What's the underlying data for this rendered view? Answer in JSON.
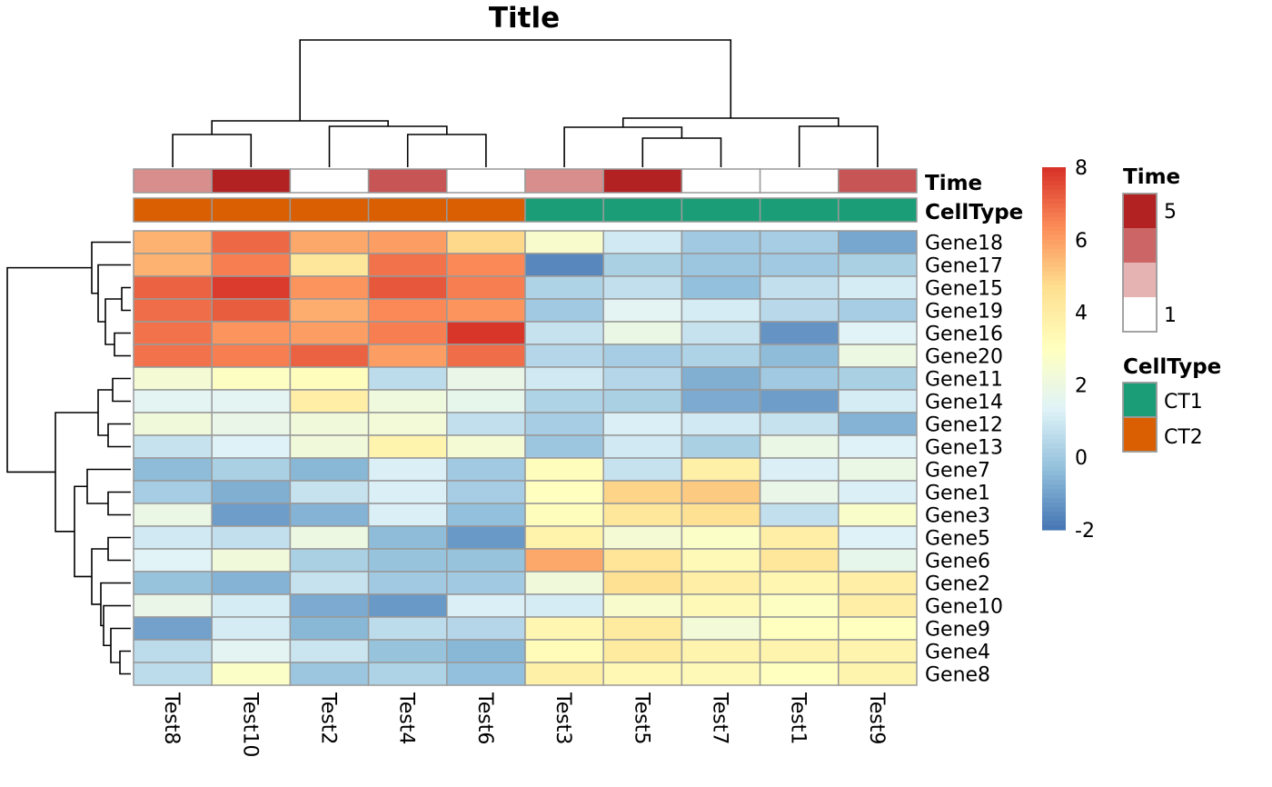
{
  "chart_data": {
    "type": "heatmap",
    "title": "Title",
    "columns": [
      "Test8",
      "Test10",
      "Test2",
      "Test4",
      "Test6",
      "Test3",
      "Test5",
      "Test7",
      "Test1",
      "Test9"
    ],
    "rows": [
      "Gene18",
      "Gene17",
      "Gene15",
      "Gene19",
      "Gene16",
      "Gene20",
      "Gene11",
      "Gene14",
      "Gene12",
      "Gene13",
      "Gene7",
      "Gene1",
      "Gene3",
      "Gene5",
      "Gene6",
      "Gene2",
      "Gene10",
      "Gene9",
      "Gene4",
      "Gene8"
    ],
    "values": [
      [
        5.6,
        7.0,
        5.8,
        6.0,
        4.8,
        2.6,
        1.0,
        0.0,
        0.1,
        -0.9
      ],
      [
        5.6,
        6.6,
        4.3,
        6.8,
        6.4,
        -1.6,
        0.2,
        -0.1,
        0.0,
        0.2
      ],
      [
        7.1,
        7.8,
        6.2,
        7.3,
        6.6,
        0.3,
        0.7,
        -0.3,
        0.7,
        1.1
      ],
      [
        6.9,
        7.2,
        5.7,
        6.4,
        6.2,
        0.0,
        1.5,
        1.1,
        0.5,
        0.1
      ],
      [
        6.8,
        6.2,
        6.0,
        6.6,
        7.9,
        0.8,
        1.9,
        0.8,
        -1.3,
        1.4
      ],
      [
        6.8,
        6.6,
        7.1,
        6.0,
        6.9,
        0.4,
        0.1,
        0.3,
        -0.4,
        2.0
      ],
      [
        2.4,
        2.9,
        3.1,
        0.6,
        1.8,
        1.0,
        0.4,
        -0.7,
        0.0,
        0.2
      ],
      [
        1.5,
        1.5,
        3.9,
        2.1,
        1.7,
        0.3,
        0.2,
        -0.8,
        -1.1,
        1.1
      ],
      [
        2.2,
        1.8,
        2.2,
        2.3,
        0.7,
        0.1,
        1.2,
        1.0,
        0.8,
        -0.6
      ],
      [
        0.8,
        1.3,
        2.2,
        3.6,
        2.4,
        -0.1,
        1.0,
        0.2,
        1.9,
        1.3
      ],
      [
        -0.4,
        0.2,
        -0.5,
        1.2,
        0.0,
        3.1,
        0.8,
        3.8,
        1.2,
        1.9
      ],
      [
        0.1,
        -0.7,
        0.8,
        1.2,
        0.1,
        3.0,
        4.9,
        5.1,
        1.8,
        1.2
      ],
      [
        1.9,
        -1.1,
        -0.6,
        1.2,
        -0.3,
        3.1,
        4.3,
        4.6,
        0.7,
        2.7
      ],
      [
        1.0,
        0.7,
        2.0,
        -0.4,
        -1.2,
        3.7,
        2.4,
        2.8,
        3.9,
        1.3
      ],
      [
        1.4,
        2.2,
        0.2,
        -0.2,
        -0.2,
        5.8,
        4.4,
        3.3,
        4.3,
        1.7
      ],
      [
        -0.2,
        -0.6,
        0.8,
        0.0,
        0.0,
        2.2,
        4.6,
        3.9,
        3.5,
        3.9
      ],
      [
        1.8,
        1.1,
        -0.8,
        -1.2,
        1.2,
        1.1,
        2.6,
        3.3,
        2.9,
        3.9
      ],
      [
        -1.0,
        1.1,
        -0.5,
        0.6,
        0.4,
        3.5,
        4.1,
        2.3,
        3.0,
        3.0
      ],
      [
        0.6,
        1.5,
        0.9,
        -0.2,
        -0.5,
        3.2,
        4.1,
        3.6,
        3.6,
        3.6
      ],
      [
        0.6,
        2.8,
        -0.1,
        0.3,
        -0.3,
        3.8,
        3.4,
        3.3,
        3.0,
        3.6
      ]
    ],
    "color_scale": {
      "min": -2,
      "max": 8,
      "ticks": [
        8,
        6,
        4,
        2,
        0,
        -2
      ],
      "stops": [
        "#4575B4",
        "#91BFDB",
        "#E0F3F8",
        "#FFFFBF",
        "#FEE090",
        "#FC8D59",
        "#D73027"
      ]
    },
    "annotations": [
      {
        "name": "Time",
        "values": [
          2,
          5,
          1,
          4,
          null,
          2,
          5,
          1,
          null,
          4
        ],
        "colors": {
          "1": "#FFFFFF",
          "2": "#D98E8E",
          "3": "#E6B3B3",
          "4": "#C85555",
          "5": "#B22222"
        },
        "legend": {
          "top": "5",
          "bottom": "1",
          "swatches": [
            "#B22222",
            "#CC6666",
            "#E6B3B3",
            "#FFFFFF"
          ]
        }
      },
      {
        "name": "CellType",
        "values": [
          "CT2",
          "CT2",
          "CT2",
          "CT2",
          "CT2",
          "CT1",
          "CT1",
          "CT1",
          "CT1",
          "CT1"
        ],
        "colors": {
          "CT1": "#1B9E77",
          "CT2": "#D95F02"
        },
        "legend": {
          "items": [
            "CT1",
            "CT2"
          ]
        }
      }
    ]
  }
}
